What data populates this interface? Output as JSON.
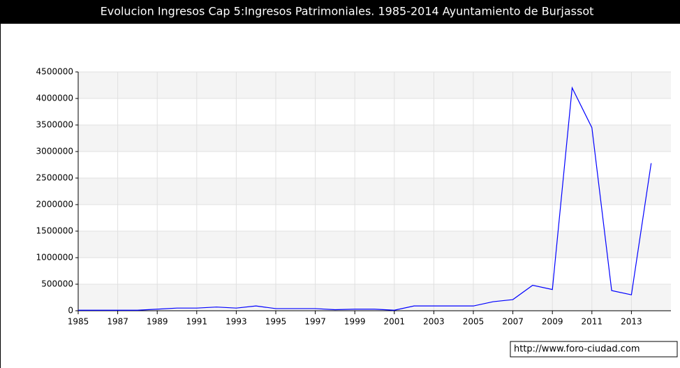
{
  "chart_data": {
    "type": "line",
    "title": "Evolucion Ingresos Cap 5:Ingresos Patrimoniales. 1985-2014 Ayuntamiento de Burjassot",
    "x": [
      1985,
      1986,
      1987,
      1988,
      1989,
      1990,
      1991,
      1992,
      1993,
      1994,
      1995,
      1996,
      1997,
      1998,
      1999,
      2000,
      2001,
      2002,
      2003,
      2004,
      2005,
      2006,
      2007,
      2008,
      2009,
      2010,
      2011,
      2012,
      2013,
      2014
    ],
    "series": [
      {
        "name": "Ingresos",
        "color": "#0000ff",
        "values": [
          10000,
          10000,
          10000,
          10000,
          30000,
          50000,
          50000,
          70000,
          50000,
          90000,
          40000,
          40000,
          40000,
          20000,
          30000,
          30000,
          10000,
          90000,
          90000,
          90000,
          90000,
          170000,
          210000,
          480000,
          400000,
          4200000,
          3450000,
          380000,
          300000,
          2780000
        ]
      }
    ],
    "xlim": [
      1985,
      2015
    ],
    "xticks": [
      1985,
      1987,
      1989,
      1991,
      1993,
      1995,
      1997,
      1999,
      2001,
      2003,
      2005,
      2007,
      2009,
      2011,
      2013
    ],
    "ylim": [
      0,
      4500000
    ],
    "yticks": [
      0,
      500000,
      1000000,
      1500000,
      2000000,
      2500000,
      3000000,
      3500000,
      4000000,
      4500000
    ],
    "grid": true,
    "watermark": "http://www.foro-ciudad.com"
  }
}
